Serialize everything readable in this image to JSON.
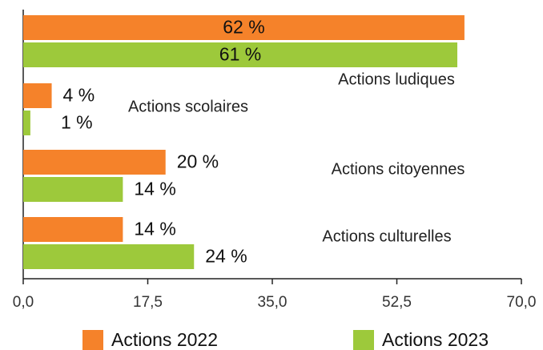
{
  "chart_data": {
    "type": "bar",
    "orientation": "horizontal",
    "categories": [
      "Actions ludiques",
      "Actions scolaires",
      "Actions citoyennes",
      "Actions culturelles"
    ],
    "series": [
      {
        "name": "Actions 2022",
        "color": "#f5822a",
        "values": [
          62,
          4,
          20,
          14
        ],
        "value_labels": [
          "62 %",
          "4 %",
          "20 %",
          "14 %"
        ]
      },
      {
        "name": "Actions 2023",
        "color": "#9dc93b",
        "values": [
          61,
          1,
          14,
          24
        ],
        "value_labels": [
          "61 %",
          "1 %",
          "14 %",
          "24 %"
        ]
      }
    ],
    "xlim": [
      0,
      70
    ],
    "xticks": [
      {
        "value": 0,
        "label": "0,0"
      },
      {
        "value": 17.5,
        "label": "17,5"
      },
      {
        "value": 35,
        "label": "35,0"
      },
      {
        "value": 52.5,
        "label": "52,5"
      },
      {
        "value": 70,
        "label": "70,0"
      }
    ],
    "legend": "bottom"
  }
}
